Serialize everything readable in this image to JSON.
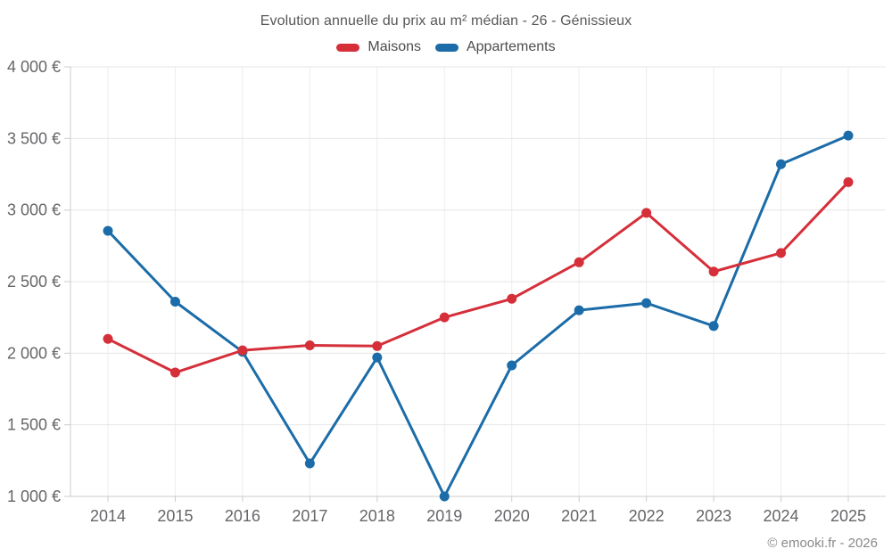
{
  "header": {
    "title": "Evolution annuelle du prix au m² médian - 26 - Génissieux"
  },
  "footer": {
    "credit": "© emooki.fr - 2026"
  },
  "colors": {
    "maisons": "#d52f3a",
    "appartements": "#1b6ca8",
    "grid": "#e6e6e6",
    "grid_vertical": "#ededed",
    "axis": "#cccccc",
    "axis_label": "#66666a"
  },
  "chart_data": {
    "type": "line",
    "title": "Evolution annuelle du prix au m² médian - 26 - Génissieux",
    "xlabel": "",
    "ylabel": "",
    "categories": [
      "2014",
      "2015",
      "2016",
      "2017",
      "2018",
      "2019",
      "2020",
      "2021",
      "2022",
      "2023",
      "2024",
      "2025"
    ],
    "series": [
      {
        "name": "Maisons",
        "color": "#d52f3a",
        "values": [
          2100,
          1865,
          2020,
          2055,
          2050,
          2250,
          2380,
          2635,
          2980,
          2570,
          2700,
          3195
        ]
      },
      {
        "name": "Appartements",
        "color": "#1b6ca8",
        "values": [
          2855,
          2360,
          2010,
          1230,
          1970,
          1000,
          1915,
          2300,
          2350,
          2190,
          3320,
          3520
        ]
      }
    ],
    "ylim": [
      1000,
      4000
    ],
    "yticks": [
      1000,
      1500,
      2000,
      2500,
      3000,
      3500,
      4000
    ],
    "ytick_labels": [
      "1 000 €",
      "1 500 €",
      "2 000 €",
      "2 500 €",
      "3 000 €",
      "3 500 €",
      "4 000 €"
    ],
    "grid": true,
    "legend_position": "top",
    "marker": "circle"
  }
}
